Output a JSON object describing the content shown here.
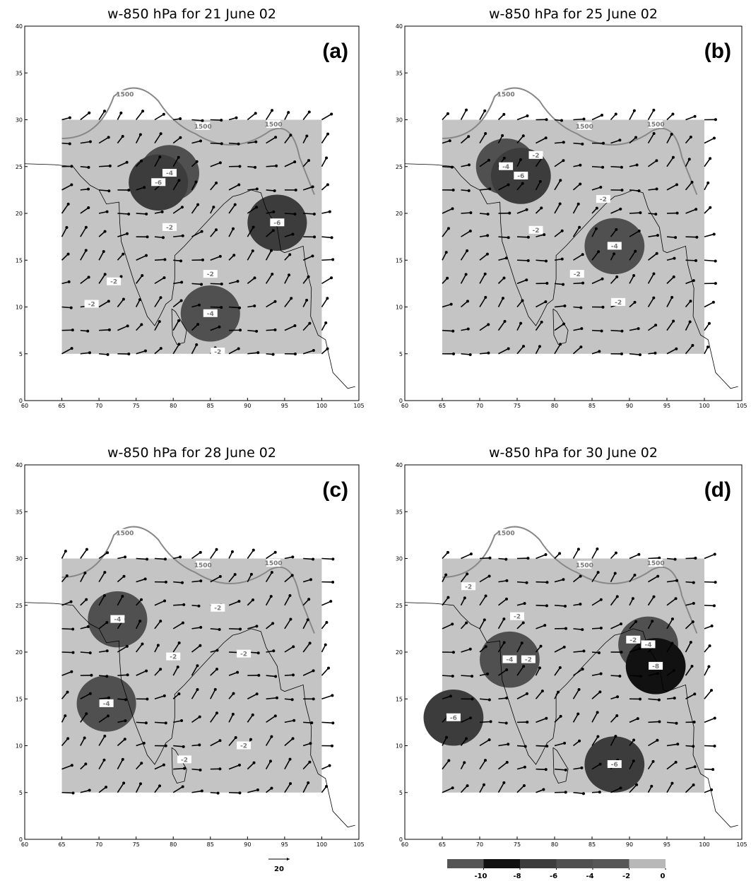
{
  "panels": [
    {
      "title": "w-850 hPa for 21 June 02",
      "label": "(a)",
      "xlim": [
        60,
        105
      ],
      "ylim": [
        0,
        40
      ],
      "xticks": [
        60,
        65,
        70,
        75,
        80,
        85,
        90,
        95,
        100,
        105
      ],
      "yticks": [
        0,
        5,
        10,
        15,
        20,
        25,
        30,
        35,
        40
      ],
      "contour_labels": [
        {
          "value": 1500,
          "lon": 73.5,
          "lat": 32.7
        },
        {
          "value": 1500,
          "lon": 84,
          "lat": 29.3
        },
        {
          "value": 1500,
          "lon": 93.5,
          "lat": 29.5
        },
        {
          "value": -4,
          "lon": 79.5,
          "lat": 24.3
        },
        {
          "value": -6,
          "lon": 78,
          "lat": 23.3
        },
        {
          "value": -2,
          "lon": 79.5,
          "lat": 18.5
        },
        {
          "value": -2,
          "lon": 72,
          "lat": 12.7
        },
        {
          "value": -2,
          "lon": 69,
          "lat": 10.3
        },
        {
          "value": -2,
          "lon": 85,
          "lat": 13.5
        },
        {
          "value": -4,
          "lon": 85,
          "lat": 9.3
        },
        {
          "value": -2,
          "lon": 86,
          "lat": 5.2
        },
        {
          "value": -6,
          "lon": 94,
          "lat": 19
        }
      ]
    },
    {
      "title": "w-850 hPa for 25 June 02",
      "label": "(b)",
      "xlim": [
        60,
        105
      ],
      "ylim": [
        0,
        40
      ],
      "xticks": [
        60,
        65,
        70,
        75,
        80,
        85,
        90,
        95,
        100,
        105
      ],
      "yticks": [
        0,
        5,
        10,
        15,
        20,
        25,
        30,
        35,
        40
      ],
      "contour_labels": [
        {
          "value": 1500,
          "lon": 73.5,
          "lat": 32.7
        },
        {
          "value": 1500,
          "lon": 84,
          "lat": 29.3
        },
        {
          "value": 1500,
          "lon": 93.5,
          "lat": 29.5
        },
        {
          "value": -2,
          "lon": 77.5,
          "lat": 26.2
        },
        {
          "value": -4,
          "lon": 73.5,
          "lat": 25
        },
        {
          "value": -6,
          "lon": 75.5,
          "lat": 24
        },
        {
          "value": -2,
          "lon": 77.5,
          "lat": 18.2
        },
        {
          "value": -2,
          "lon": 86.5,
          "lat": 21.5
        },
        {
          "value": -4,
          "lon": 88,
          "lat": 16.5
        },
        {
          "value": -2,
          "lon": 83,
          "lat": 13.5
        },
        {
          "value": -2,
          "lon": 88.5,
          "lat": 10.5
        }
      ]
    },
    {
      "title": "w-850 hPa for 28 June 02",
      "label": "(c)",
      "xlim": [
        60,
        105
      ],
      "ylim": [
        0,
        40
      ],
      "xticks": [
        60,
        65,
        70,
        75,
        80,
        85,
        90,
        95,
        100,
        105
      ],
      "yticks": [
        0,
        5,
        10,
        15,
        20,
        25,
        30,
        35,
        40
      ],
      "contour_labels": [
        {
          "value": 1500,
          "lon": 73.5,
          "lat": 32.7
        },
        {
          "value": 1500,
          "lon": 84,
          "lat": 29.3
        },
        {
          "value": 1500,
          "lon": 93.5,
          "lat": 29.5
        },
        {
          "value": -4,
          "lon": 72.5,
          "lat": 23.5
        },
        {
          "value": -2,
          "lon": 80,
          "lat": 19.5
        },
        {
          "value": -2,
          "lon": 86,
          "lat": 24.7
        },
        {
          "value": -2,
          "lon": 89.5,
          "lat": 19.8
        },
        {
          "value": -2,
          "lon": 89.5,
          "lat": 10
        },
        {
          "value": -2,
          "lon": 81.5,
          "lat": 8.5
        },
        {
          "value": -4,
          "lon": 71,
          "lat": 14.5
        }
      ]
    },
    {
      "title": "w-850 hPa for 30 June 02",
      "label": "(d)",
      "xlim": [
        60,
        105
      ],
      "ylim": [
        0,
        40
      ],
      "xticks": [
        60,
        65,
        70,
        75,
        80,
        85,
        90,
        95,
        100,
        105
      ],
      "yticks": [
        0,
        5,
        10,
        15,
        20,
        25,
        30,
        35,
        40
      ],
      "contour_labels": [
        {
          "value": 1500,
          "lon": 73.5,
          "lat": 32.7
        },
        {
          "value": 1500,
          "lon": 84,
          "lat": 29.3
        },
        {
          "value": 1500,
          "lon": 93.5,
          "lat": 29.5
        },
        {
          "value": -2,
          "lon": 68.5,
          "lat": 27
        },
        {
          "value": -2,
          "lon": 75,
          "lat": 23.8
        },
        {
          "value": -4,
          "lon": 74,
          "lat": 19.2
        },
        {
          "value": -2,
          "lon": 76.5,
          "lat": 19.2
        },
        {
          "value": -2,
          "lon": 90.5,
          "lat": 21.3
        },
        {
          "value": -4,
          "lon": 92.5,
          "lat": 20.8
        },
        {
          "value": -8,
          "lon": 93.5,
          "lat": 18.5
        },
        {
          "value": -6,
          "lon": 66.5,
          "lat": 13
        },
        {
          "value": -6,
          "lon": 88,
          "lat": 8
        }
      ]
    }
  ],
  "colorbar": {
    "levels": [
      -10,
      -8,
      -6,
      -4,
      -2,
      0
    ],
    "colors": [
      "#555555",
      "#111111",
      "#3c3c3c",
      "#505050",
      "#575757",
      "#b8b8b8"
    ]
  },
  "vector_reference": 20
}
